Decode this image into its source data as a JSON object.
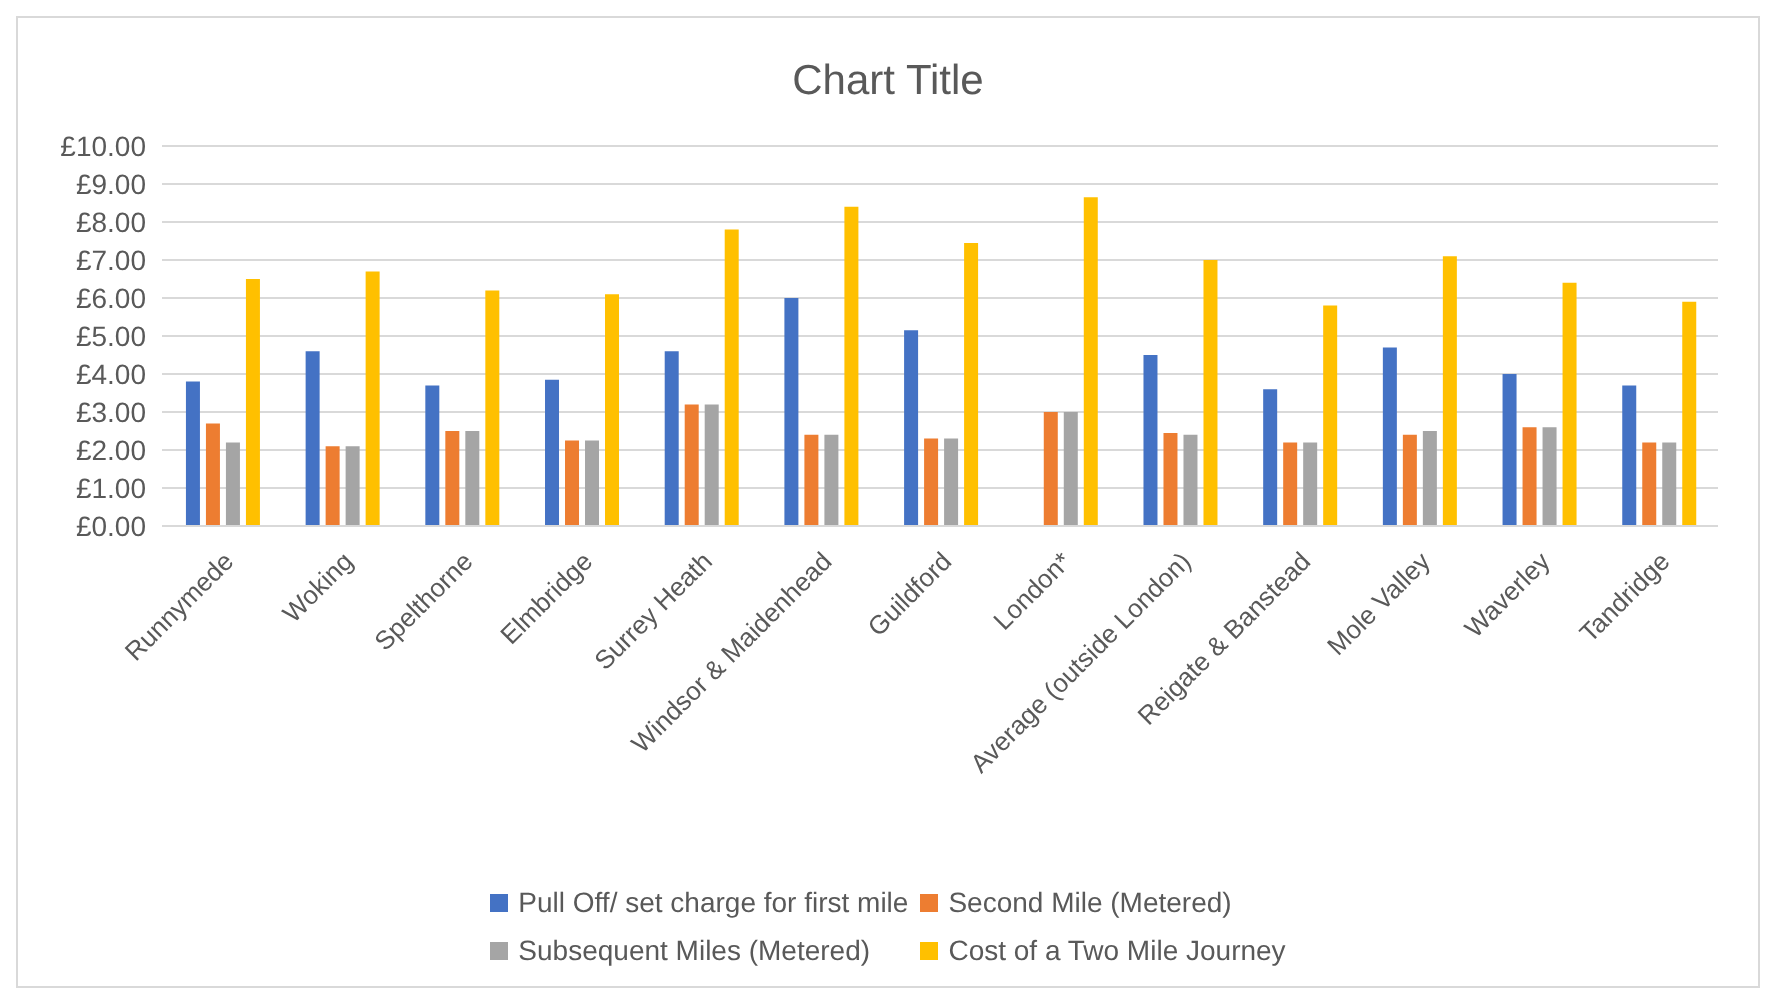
{
  "chart_data": {
    "type": "bar",
    "title": "Chart Title",
    "categories": [
      "Runnymede",
      "Woking",
      "Spelthorne",
      "Elmbridge",
      "Surrey Heath",
      "Windsor & Maidenhead",
      "Guildford",
      "London*",
      "Average (outside London)",
      "Reigate & Banstead",
      "Mole Valley",
      "Waverley",
      "Tandridge"
    ],
    "series": [
      {
        "name": "Pull Off/ set charge for first mile",
        "color": "#4472c4",
        "values": [
          3.8,
          4.6,
          3.7,
          3.85,
          4.6,
          6.0,
          5.15,
          null,
          4.5,
          3.6,
          4.7,
          4.0,
          3.7
        ]
      },
      {
        "name": "Second Mile (Metered)",
        "color": "#ed7d31",
        "values": [
          2.7,
          2.1,
          2.5,
          2.25,
          3.2,
          2.4,
          2.3,
          3.0,
          2.45,
          2.2,
          2.4,
          2.6,
          2.2
        ]
      },
      {
        "name": "Subsequent Miles (Metered)",
        "color": "#a5a5a5",
        "values": [
          2.2,
          2.1,
          2.5,
          2.25,
          3.2,
          2.4,
          2.3,
          3.0,
          2.4,
          2.2,
          2.5,
          2.6,
          2.2
        ]
      },
      {
        "name": "Cost of a Two Mile Journey",
        "color": "#ffc000",
        "values": [
          6.5,
          6.7,
          6.2,
          6.1,
          7.8,
          8.4,
          7.45,
          8.65,
          7.0,
          5.8,
          7.1,
          6.4,
          5.9
        ]
      }
    ],
    "ylim": [
      0,
      10
    ],
    "yticks": [
      {
        "value": 0,
        "label": "£0.00"
      },
      {
        "value": 1,
        "label": "£1.00"
      },
      {
        "value": 2,
        "label": "£2.00"
      },
      {
        "value": 3,
        "label": "£3.00"
      },
      {
        "value": 4,
        "label": "£4.00"
      },
      {
        "value": 5,
        "label": "£5.00"
      },
      {
        "value": 6,
        "label": "£6.00"
      },
      {
        "value": 7,
        "label": "£7.00"
      },
      {
        "value": 8,
        "label": "£8.00"
      },
      {
        "value": 9,
        "label": "£9.00"
      },
      {
        "value": 10,
        "label": "£10.00"
      }
    ],
    "grid": "y",
    "legend": "bottom"
  }
}
